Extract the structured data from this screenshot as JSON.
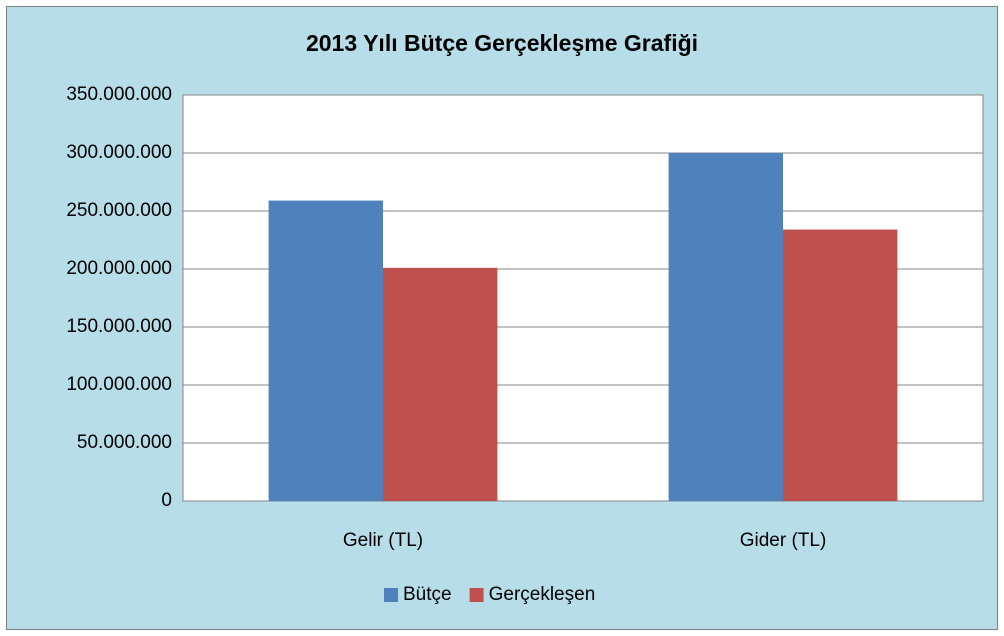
{
  "chart_data": {
    "type": "bar",
    "title": "2013 Yılı Bütçe Gerçekleşme Grafiği",
    "categories": [
      "Gelir (TL)",
      "Gider (TL)"
    ],
    "series": [
      {
        "name": "Bütçe",
        "color": "#4f81bd",
        "values": [
          259000000,
          300000000
        ]
      },
      {
        "name": "Gerçekleşen",
        "color": "#c0504d",
        "values": [
          201000000,
          234000000
        ]
      }
    ],
    "ylim": [
      0,
      350000000
    ],
    "yticks": [
      0,
      {
        "value": 50000000,
        "label": "50.000.000"
      },
      {
        "value": 100000000,
        "label": "100.000.000"
      },
      {
        "value": 150000000,
        "label": "150.000.000"
      },
      {
        "value": 200000000,
        "label": "200.000.000"
      },
      {
        "value": 250000000,
        "label": "250.000.000"
      },
      {
        "value": 300000000,
        "label": "300.000.000"
      },
      {
        "value": 350000000,
        "label": "350.000.000"
      }
    ],
    "grid": true,
    "legend": "bottom"
  }
}
